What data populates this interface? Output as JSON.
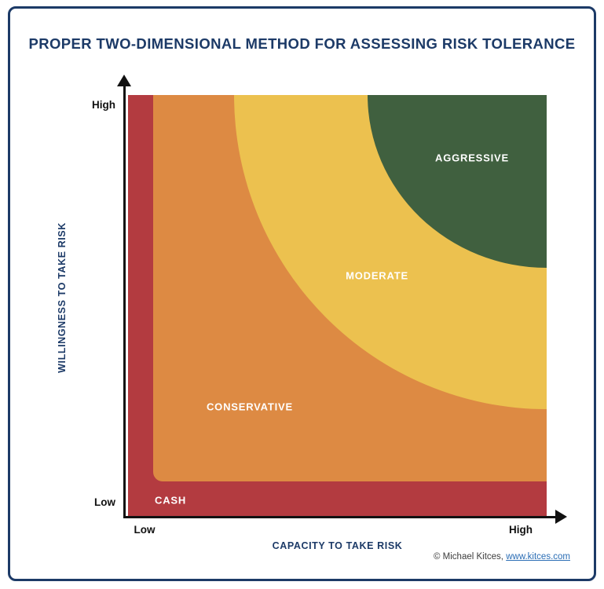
{
  "title": "PROPER TWO-DIMENSIONAL METHOD FOR ASSESSING RISK TOLERANCE",
  "chart_data": {
    "type": "area",
    "title": "PROPER TWO-DIMENSIONAL METHOD FOR ASSESSING RISK TOLERANCE",
    "xlabel": "CAPACITY TO TAKE RISK",
    "ylabel": "WILLINGNESS TO TAKE RISK",
    "x_ticks": [
      "Low",
      "High"
    ],
    "y_ticks": [
      "Low",
      "High"
    ],
    "grid": false,
    "legend": "none",
    "regions": [
      {
        "label": "CASH",
        "color": "#b33b40",
        "placement": "L-shaped band hugging the low-capacity (left) and low-willingness (bottom) edges",
        "approx_extent": "capacity below ~6% of axis, or willingness below ~9% of axis"
      },
      {
        "label": "CONSERVATIVE",
        "color": "#dd8a43",
        "placement": "broad middle region outside the moderate curve",
        "approx_extent": "from just above/right of the cash band out to the moderate quarter-ellipse boundary"
      },
      {
        "label": "MODERATE",
        "color": "#ecc14f",
        "placement": "upper-right region bounded by a quarter-ellipse",
        "approx_extent": "quarter-ellipse anchored at top-right, spanning ~75% of width and ~74% of height"
      },
      {
        "label": "AGGRESSIVE",
        "color": "#40603f",
        "placement": "top-right corner region bounded by a quarter-ellipse",
        "approx_extent": "quarter-ellipse anchored at top-right, spanning ~43% of width and ~41% of height"
      }
    ]
  },
  "axes": {
    "x_label": "CAPACITY TO TAKE RISK",
    "y_label": "WILLINGNESS TO TAKE RISK",
    "x_low": "Low",
    "x_high": "High",
    "y_low": "Low",
    "y_high": "High"
  },
  "footer": {
    "credit_prefix": "© Michael Kitces, ",
    "link_text": "www.kitces.com"
  },
  "colors": {
    "frame": "#1c3a67",
    "title_text": "#1c3a67",
    "axis": "#111111",
    "cash": "#b33b40",
    "conservative": "#dd8a43",
    "moderate": "#ecc14f",
    "aggressive": "#40603f",
    "link": "#2a6db5",
    "region_label_text": "#ffffff"
  }
}
